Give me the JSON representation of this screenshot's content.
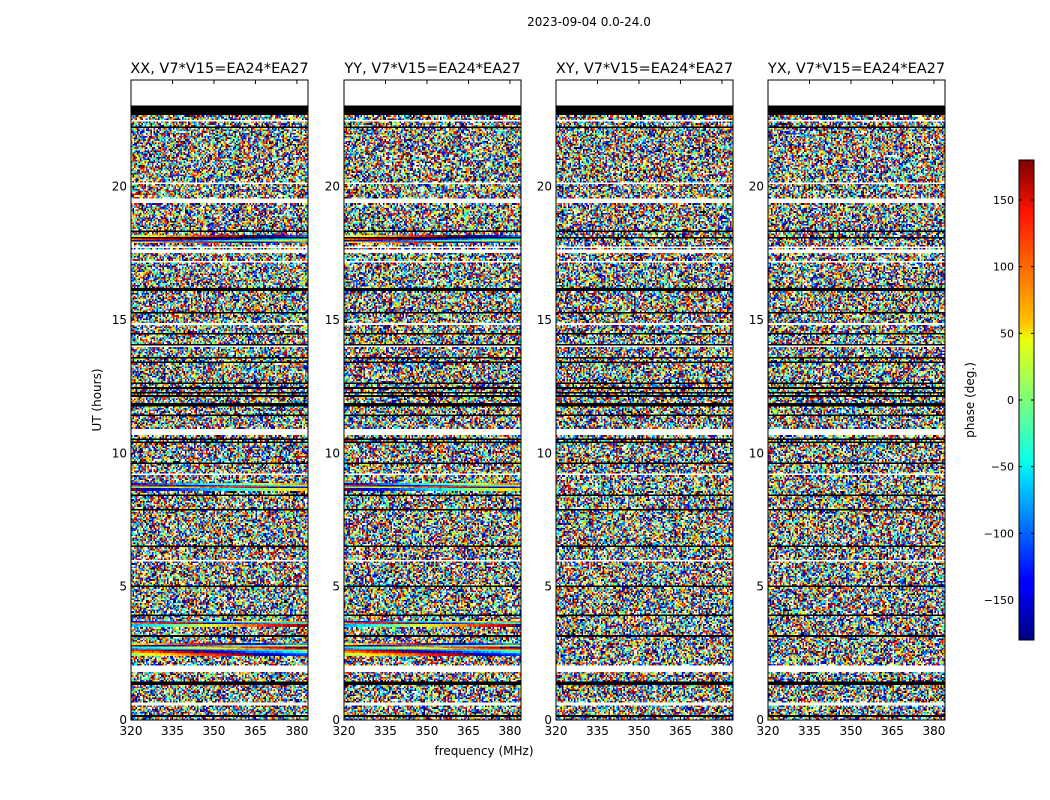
{
  "chart_data": {
    "type": "heatmap",
    "title": "2023-09-04 0.0-24.0",
    "xlabel": "frequency (MHz)",
    "ylabel": "UT (hours)",
    "xlim": [
      320,
      384
    ],
    "ylim": [
      0,
      24
    ],
    "x_ticks": [
      320,
      335,
      350,
      365,
      380
    ],
    "y_ticks": [
      0,
      5,
      10,
      15,
      20
    ],
    "panels": [
      {
        "title": "XX, V7*V15=EA24*EA27"
      },
      {
        "title": "YY, V7*V15=EA24*EA27"
      },
      {
        "title": "XY, V7*V15=EA24*EA27"
      },
      {
        "title": "YX, V7*V15=EA24*EA27"
      }
    ],
    "colorbar": {
      "label": "phase (deg.)",
      "range": [
        -180,
        180
      ],
      "ticks": [
        -150,
        -100,
        -50,
        0,
        50,
        100,
        150
      ],
      "colormap": "jet"
    },
    "blank_rows_hours": [
      [
        0.0,
        0.95
      ],
      [
        4.45,
        4.6
      ],
      [
        6.35,
        6.5
      ],
      [
        13.1,
        13.3
      ],
      [
        21.95,
        22.2
      ],
      [
        23.35,
        23.45
      ]
    ],
    "flagged_rows_hours": [
      [
        0.95,
        1.3
      ],
      [
        22.55,
        22.6
      ]
    ]
  }
}
